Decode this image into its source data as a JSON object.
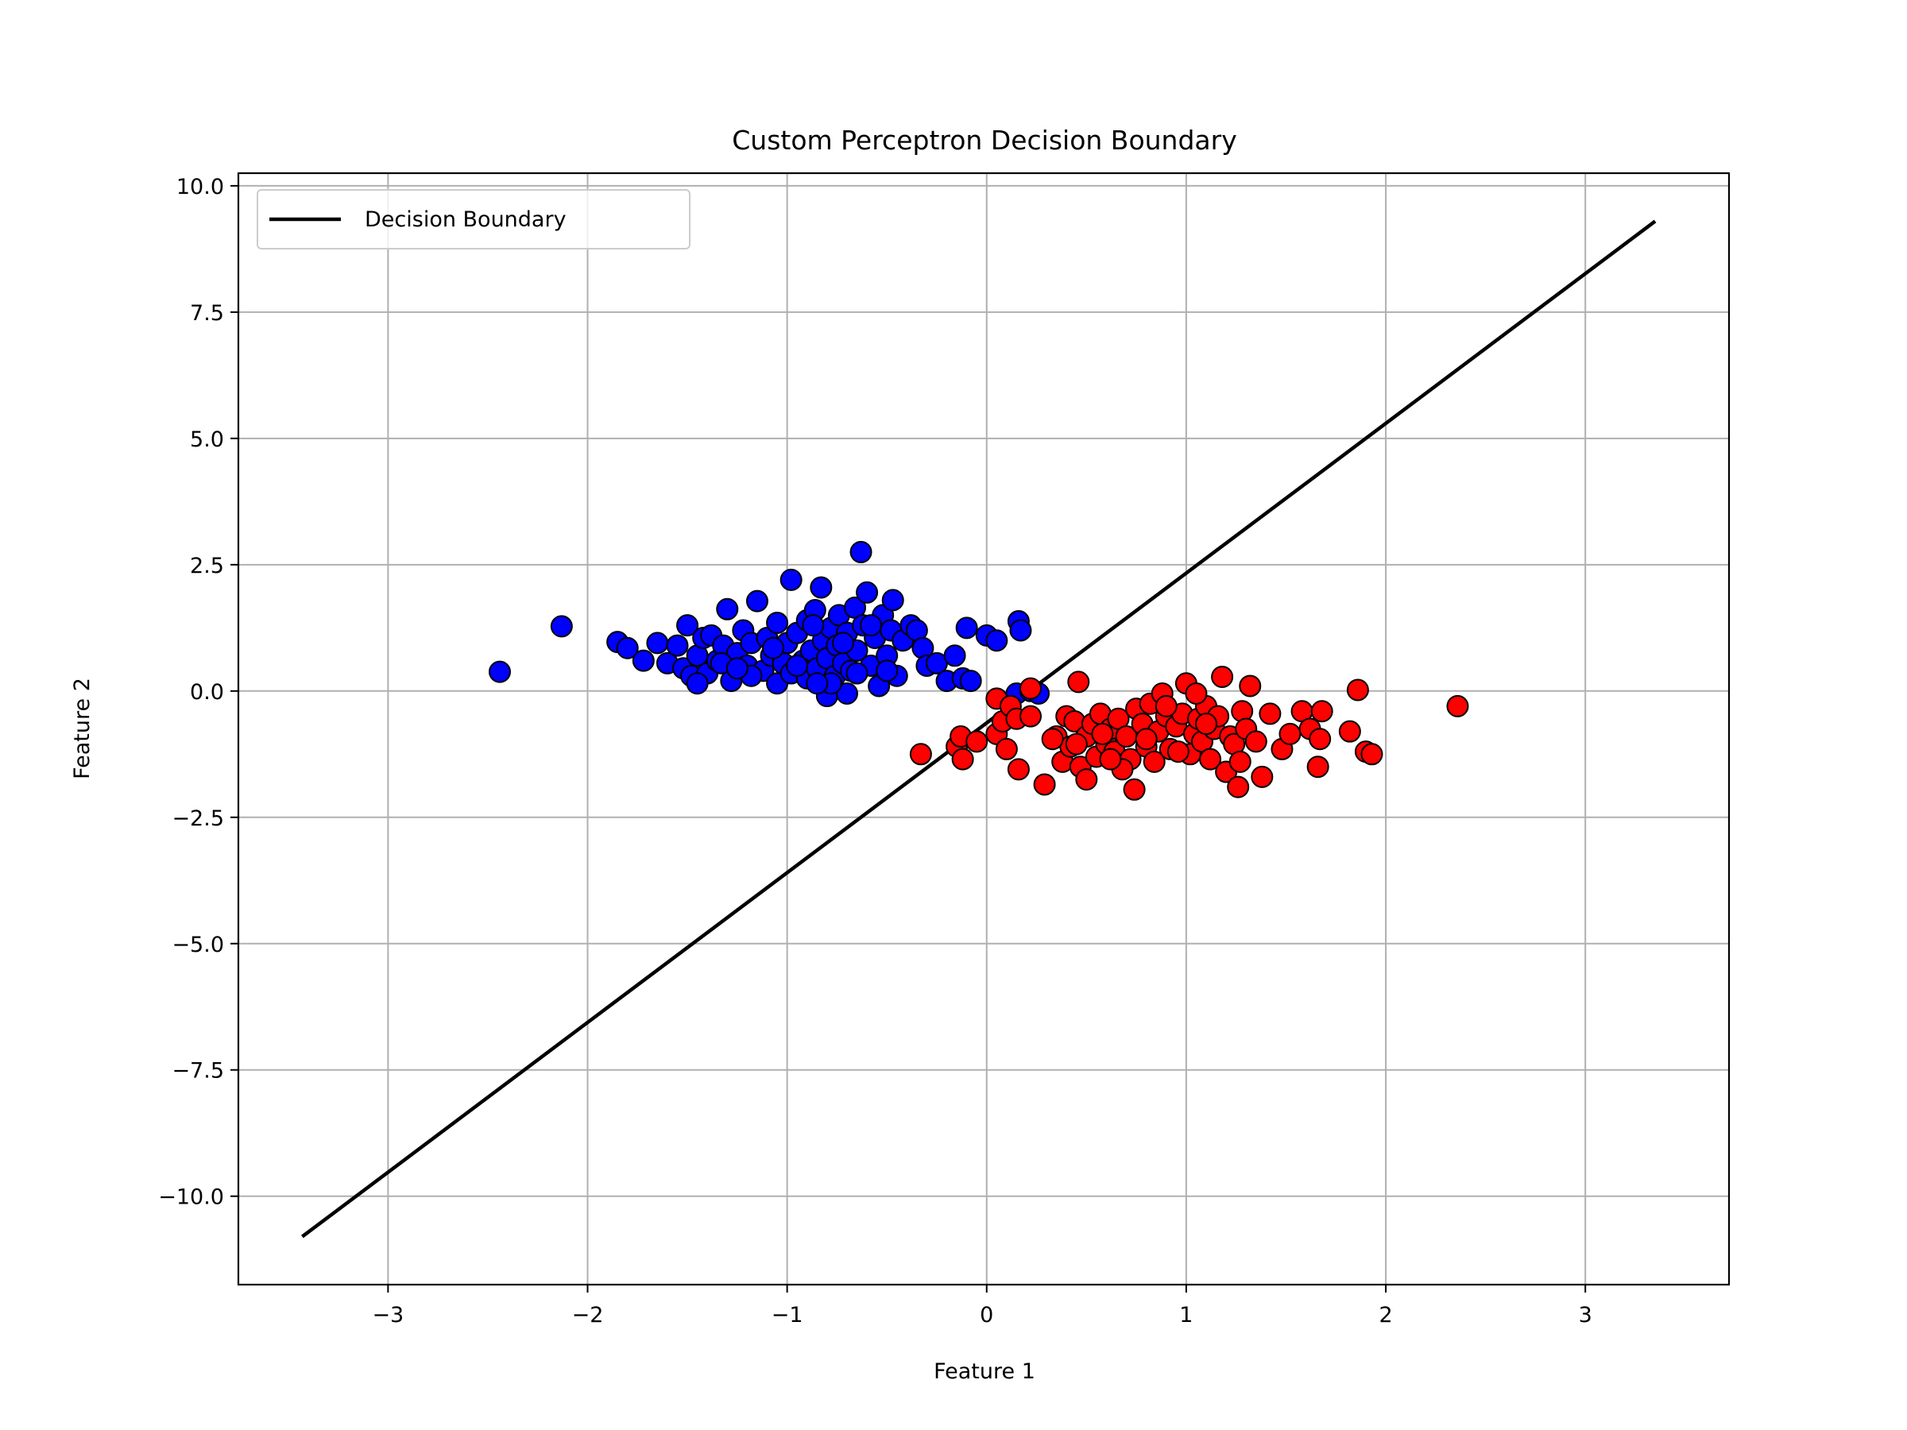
{
  "chart_data": {
    "type": "scatter",
    "title": "Custom Perceptron Decision Boundary",
    "xlabel": "Feature 1",
    "ylabel": "Feature 2",
    "xlim": [
      -3.75,
      3.72
    ],
    "ylim": [
      -11.75,
      10.25
    ],
    "xticks": [
      -3,
      -2,
      -1,
      0,
      1,
      2,
      3
    ],
    "xtick_labels": [
      "−3",
      "−2",
      "−1",
      "0",
      "1",
      "2",
      "3"
    ],
    "yticks": [
      -10,
      -7.5,
      -5,
      -2.5,
      0,
      2.5,
      5,
      7.5,
      10
    ],
    "ytick_labels": [
      "−10.0",
      "−7.5",
      "−5.0",
      "−2.5",
      "0.0",
      "2.5",
      "5.0",
      "7.5",
      "10.0"
    ],
    "grid": true,
    "legend": {
      "position": "top-left",
      "entries": [
        "Decision Boundary"
      ]
    },
    "line": {
      "name": "Decision Boundary",
      "color": "#000000",
      "x": [
        -3.43,
        3.35
      ],
      "y": [
        -10.8,
        9.3
      ]
    },
    "scatter_series": [
      {
        "color": "#0000ff",
        "points": [
          [
            -2.44,
            0.38
          ],
          [
            -2.13,
            1.28
          ],
          [
            -1.85,
            0.97
          ],
          [
            -1.8,
            0.85
          ],
          [
            -1.72,
            0.6
          ],
          [
            -1.65,
            0.95
          ],
          [
            -1.6,
            0.55
          ],
          [
            -1.55,
            0.9
          ],
          [
            -1.52,
            0.45
          ],
          [
            -1.5,
            1.3
          ],
          [
            -1.48,
            0.3
          ],
          [
            -1.45,
            0.7
          ],
          [
            -1.42,
            1.05
          ],
          [
            -1.4,
            0.35
          ],
          [
            -1.38,
            1.1
          ],
          [
            -1.35,
            0.6
          ],
          [
            -1.32,
            0.9
          ],
          [
            -1.3,
            1.62
          ],
          [
            -1.28,
            0.2
          ],
          [
            -1.25,
            0.75
          ],
          [
            -1.22,
            1.2
          ],
          [
            -1.2,
            0.5
          ],
          [
            -1.18,
            0.95
          ],
          [
            -1.15,
            1.78
          ],
          [
            -1.12,
            0.4
          ],
          [
            -1.1,
            1.05
          ],
          [
            -1.08,
            0.7
          ],
          [
            -1.05,
            1.35
          ],
          [
            -1.05,
            0.15
          ],
          [
            -1.02,
            0.55
          ],
          [
            -1.0,
            0.95
          ],
          [
            -0.98,
            2.2
          ],
          [
            -0.98,
            0.35
          ],
          [
            -0.95,
            1.15
          ],
          [
            -0.92,
            0.6
          ],
          [
            -0.9,
            1.4
          ],
          [
            -0.9,
            0.25
          ],
          [
            -0.88,
            0.8
          ],
          [
            -0.86,
            1.6
          ],
          [
            -0.85,
            0.45
          ],
          [
            -0.83,
            2.05
          ],
          [
            -0.82,
            1.0
          ],
          [
            -0.8,
            -0.1
          ],
          [
            -0.8,
            0.65
          ],
          [
            -0.78,
            1.25
          ],
          [
            -0.76,
            0.3
          ],
          [
            -0.75,
            0.9
          ],
          [
            -0.74,
            1.5
          ],
          [
            -0.72,
            0.55
          ],
          [
            -0.7,
            -0.05
          ],
          [
            -0.7,
            1.15
          ],
          [
            -0.68,
            0.4
          ],
          [
            -0.66,
            1.65
          ],
          [
            -0.65,
            0.8
          ],
          [
            -0.63,
            2.75
          ],
          [
            -0.62,
            1.3
          ],
          [
            -0.6,
            1.95
          ],
          [
            -0.58,
            0.5
          ],
          [
            -0.56,
            1.05
          ],
          [
            -0.54,
            0.1
          ],
          [
            -0.52,
            1.5
          ],
          [
            -0.5,
            0.7
          ],
          [
            -0.48,
            1.2
          ],
          [
            -0.47,
            1.8
          ],
          [
            -0.45,
            0.3
          ],
          [
            -0.42,
            1.0
          ],
          [
            -0.38,
            1.3
          ],
          [
            -0.35,
            1.2
          ],
          [
            -0.32,
            0.85
          ],
          [
            -0.3,
            0.5
          ],
          [
            -0.25,
            0.55
          ],
          [
            -0.2,
            0.2
          ],
          [
            -0.16,
            0.7
          ],
          [
            -0.12,
            0.25
          ],
          [
            -0.1,
            1.25
          ],
          [
            -0.08,
            0.2
          ],
          [
            0.0,
            1.1
          ],
          [
            0.05,
            1.0
          ],
          [
            0.16,
            1.38
          ],
          [
            0.17,
            1.2
          ],
          [
            0.15,
            -0.05
          ],
          [
            0.22,
            0.0
          ],
          [
            0.26,
            -0.05
          ],
          [
            -1.33,
            0.55
          ],
          [
            -1.18,
            0.3
          ],
          [
            -1.07,
            0.85
          ],
          [
            -0.95,
            0.5
          ],
          [
            -0.87,
            1.3
          ],
          [
            -0.78,
            0.15
          ],
          [
            -0.65,
            0.35
          ],
          [
            -0.58,
            1.3
          ],
          [
            -0.5,
            0.4
          ],
          [
            -1.45,
            0.15
          ],
          [
            -1.25,
            0.45
          ],
          [
            -0.85,
            0.15
          ],
          [
            -0.72,
            0.95
          ]
        ]
      },
      {
        "color": "#ff0000",
        "points": [
          [
            -0.33,
            -1.25
          ],
          [
            -0.15,
            -1.1
          ],
          [
            -0.13,
            -0.9
          ],
          [
            -0.12,
            -1.35
          ],
          [
            -0.05,
            -1.0
          ],
          [
            0.05,
            -0.15
          ],
          [
            0.05,
            -0.85
          ],
          [
            0.08,
            -0.6
          ],
          [
            0.1,
            -1.15
          ],
          [
            0.12,
            -0.3
          ],
          [
            0.15,
            -0.55
          ],
          [
            0.16,
            -1.55
          ],
          [
            0.22,
            -0.5
          ],
          [
            0.22,
            0.05
          ],
          [
            0.29,
            -1.85
          ],
          [
            0.35,
            -0.9
          ],
          [
            0.38,
            -1.4
          ],
          [
            0.4,
            -0.5
          ],
          [
            0.42,
            -1.1
          ],
          [
            0.44,
            -0.6
          ],
          [
            0.46,
            0.18
          ],
          [
            0.47,
            -1.5
          ],
          [
            0.5,
            -0.9
          ],
          [
            0.5,
            -1.75
          ],
          [
            0.53,
            -0.65
          ],
          [
            0.55,
            -1.3
          ],
          [
            0.57,
            -0.45
          ],
          [
            0.6,
            -1.05
          ],
          [
            0.62,
            -0.75
          ],
          [
            0.64,
            -1.2
          ],
          [
            0.66,
            -0.55
          ],
          [
            0.7,
            -0.9
          ],
          [
            0.72,
            -1.35
          ],
          [
            0.74,
            -1.95
          ],
          [
            0.75,
            -0.35
          ],
          [
            0.78,
            -0.65
          ],
          [
            0.8,
            -1.1
          ],
          [
            0.82,
            -0.25
          ],
          [
            0.84,
            -1.4
          ],
          [
            0.86,
            -0.8
          ],
          [
            0.88,
            -0.05
          ],
          [
            0.9,
            -0.5
          ],
          [
            0.92,
            -1.15
          ],
          [
            0.95,
            -0.7
          ],
          [
            0.98,
            -0.45
          ],
          [
            1.0,
            0.15
          ],
          [
            1.02,
            -1.25
          ],
          [
            1.04,
            -0.85
          ],
          [
            1.06,
            -0.55
          ],
          [
            1.08,
            -1.0
          ],
          [
            1.1,
            -0.3
          ],
          [
            1.12,
            -1.35
          ],
          [
            1.14,
            -0.75
          ],
          [
            1.16,
            -0.5
          ],
          [
            1.18,
            0.28
          ],
          [
            1.2,
            -1.6
          ],
          [
            1.22,
            -0.9
          ],
          [
            1.24,
            -1.05
          ],
          [
            1.26,
            -1.9
          ],
          [
            1.28,
            -0.4
          ],
          [
            1.3,
            -0.75
          ],
          [
            1.32,
            0.1
          ],
          [
            1.35,
            -1.0
          ],
          [
            1.38,
            -1.7
          ],
          [
            1.42,
            -0.45
          ],
          [
            1.48,
            -1.15
          ],
          [
            1.52,
            -0.85
          ],
          [
            1.58,
            -0.4
          ],
          [
            1.62,
            -0.75
          ],
          [
            1.66,
            -1.5
          ],
          [
            1.67,
            -0.95
          ],
          [
            1.68,
            -0.4
          ],
          [
            1.82,
            -0.8
          ],
          [
            1.86,
            0.02
          ],
          [
            1.9,
            -1.2
          ],
          [
            1.93,
            -1.25
          ],
          [
            2.36,
            -0.3
          ],
          [
            0.58,
            -0.85
          ],
          [
            0.68,
            -1.55
          ],
          [
            0.8,
            -0.95
          ],
          [
            0.96,
            -1.2
          ],
          [
            1.1,
            -0.65
          ],
          [
            1.27,
            -1.4
          ],
          [
            0.9,
            -0.3
          ],
          [
            1.05,
            -0.05
          ],
          [
            0.33,
            -0.95
          ],
          [
            0.45,
            -1.05
          ],
          [
            0.62,
            -1.35
          ]
        ]
      }
    ]
  }
}
